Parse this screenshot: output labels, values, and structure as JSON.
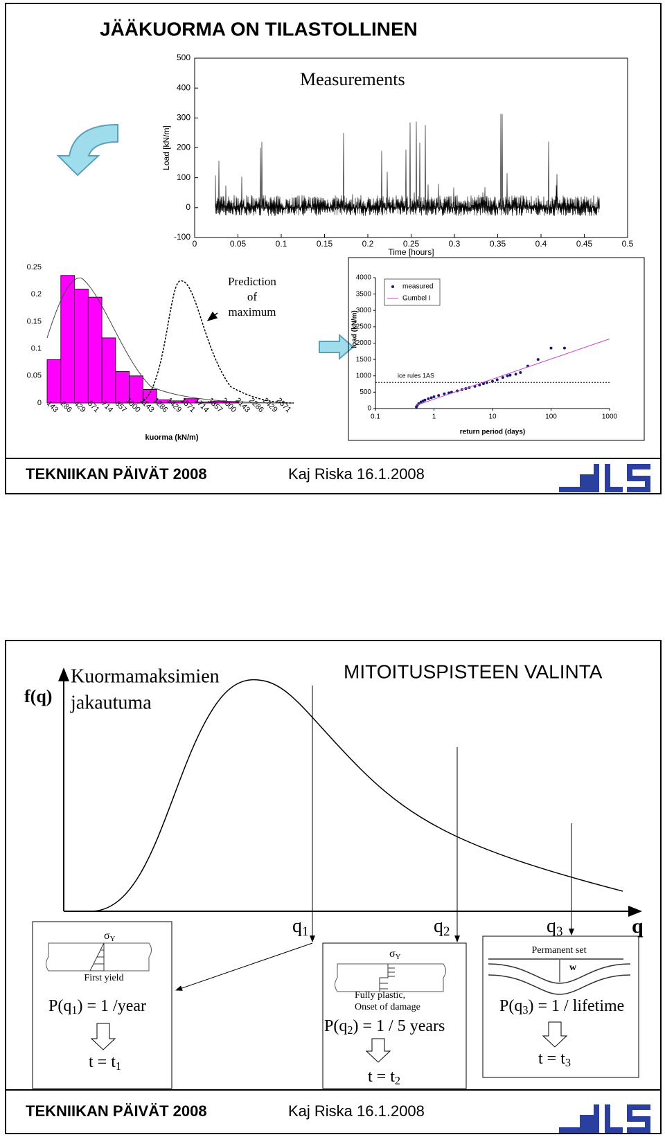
{
  "slide1": {
    "title": "JÄÄKUORMA ON TILASTOLLINEN",
    "footer_left": "TEKNIIKAN PÄIVÄT  2008",
    "footer_right": "Kaj Riska  16.1.2008"
  },
  "chart_data": [
    {
      "type": "line",
      "title": "Measurements",
      "x_label": "Time [hours]",
      "y_label": "Load [kN/m]",
      "xlim": [
        0,
        0.5
      ],
      "ylim": [
        -100,
        500
      ],
      "xticks": [
        0,
        0.05,
        0.1,
        0.15,
        0.2,
        0.25,
        0.3,
        0.35,
        0.4,
        0.45,
        0.5
      ],
      "yticks": [
        -100,
        0,
        100,
        200,
        300,
        400,
        500
      ],
      "color": "#000000"
    },
    {
      "type": "bar",
      "x_label": "kuorma (kN/m)",
      "annotation": [
        "Prediction",
        "of",
        "maximum"
      ],
      "categories": [
        143,
        286,
        429,
        571,
        714,
        857,
        1000,
        1143,
        1286,
        1429,
        1571,
        1714,
        1857,
        2000,
        2143,
        2286,
        2429,
        2571
      ],
      "values": [
        0.08,
        0.235,
        0.21,
        0.195,
        0.12,
        0.058,
        0.05,
        0.025,
        0.006,
        0.004,
        0.008,
        0.002,
        0.003,
        0.003,
        0,
        0,
        0,
        0
      ],
      "color": "#ff00ff",
      "ylim": [
        0,
        0.25
      ],
      "yticks": [
        0,
        0.05,
        0.1,
        0.15,
        0.2,
        0.25
      ]
    },
    {
      "type": "scatter",
      "x_label": "return period (days)",
      "y_label": "load (kN/m)",
      "log_x": true,
      "xlim": [
        0.1,
        1000
      ],
      "xticks": [
        0.1,
        1,
        10,
        100,
        1000
      ],
      "ylim": [
        0,
        4000
      ],
      "yticks": [
        0,
        500,
        1000,
        1500,
        2000,
        2500,
        3000,
        3500,
        4000
      ],
      "reference_line": {
        "value": 800,
        "label": "ice rules 1AS"
      },
      "legend": "top-left",
      "series": [
        {
          "name": "measured",
          "color": "#1a1a6e",
          "mode": "markers",
          "x": [
            0.5,
            0.52,
            0.55,
            0.6,
            0.65,
            0.7,
            0.8,
            0.9,
            1,
            1.2,
            1.5,
            1.8,
            2,
            2.5,
            3,
            3.5,
            4,
            5,
            6,
            7,
            8,
            10,
            12,
            15,
            18,
            20,
            25,
            30,
            40,
            60,
            100,
            170
          ],
          "values": [
            50,
            100,
            150,
            200,
            230,
            260,
            300,
            330,
            360,
            400,
            450,
            480,
            500,
            540,
            580,
            610,
            640,
            680,
            720,
            760,
            790,
            830,
            880,
            950,
            1000,
            1020,
            1050,
            1100,
            1300,
            1500,
            1850,
            1850
          ]
        },
        {
          "name": "Gumbel I",
          "color": "#cc44cc",
          "mode": "line",
          "x": [
            0.5,
            1000
          ],
          "values": [
            100,
            2130
          ]
        }
      ]
    }
  ],
  "slide2": {
    "y_label": "f(q)",
    "curve_label": [
      "Kuormamaksimien",
      "jakautuma"
    ],
    "title": "MITOITUSPISTEEN VALINTA",
    "axis_label": "q",
    "q_labels": [
      [
        "q",
        "1"
      ],
      [
        "q",
        "2"
      ],
      [
        "q",
        "3"
      ]
    ],
    "boxes": [
      {
        "stress": [
          "σ",
          "Y"
        ],
        "caption": [
          "First yield"
        ],
        "probability": [
          "P(q",
          "1",
          ") = 1 /year"
        ],
        "time": [
          "t = t",
          "1"
        ]
      },
      {
        "stress": [
          "σ",
          "Y"
        ],
        "caption": [
          "Fully plastic,",
          "Onset of damage"
        ],
        "probability": [
          "P(q",
          "2",
          ") = 1 / 5 years"
        ],
        "time": [
          "t = t",
          "2"
        ]
      },
      {
        "caption": [
          "Permanent set"
        ],
        "deflection": "w",
        "probability": [
          "P(q",
          "3",
          ") = 1 / lifetime"
        ],
        "time": [
          "t = t",
          "3"
        ]
      }
    ],
    "footer_left": "TEKNIIKAN PÄIVÄT  2008",
    "footer_right": "Kaj Riska  16.1.2008"
  }
}
